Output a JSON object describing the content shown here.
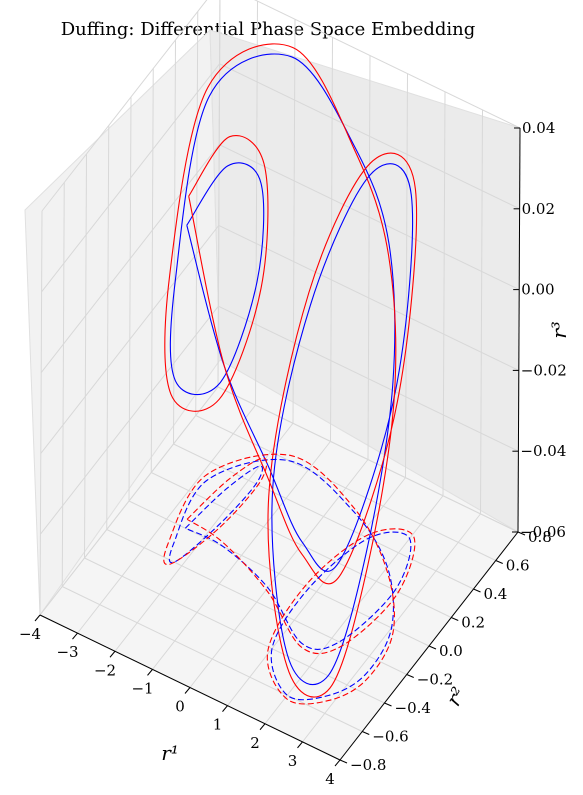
{
  "chart_data": {
    "type": "line",
    "projection": "3d",
    "title": "Duffing: Differential Phase Space Embedding",
    "xlabel": "r¹",
    "ylabel": "r²",
    "zlabel": "r³",
    "xlim": [
      -4,
      4
    ],
    "ylim": [
      -0.8,
      0.8
    ],
    "zlim": [
      -0.06,
      0.04
    ],
    "xticks": [
      "−4",
      "−3",
      "−2",
      "−1",
      "0",
      "1",
      "2",
      "3",
      "4"
    ],
    "yticks": [
      "−0.8",
      "−0.6",
      "−0.4",
      "−0.2",
      "0.0",
      "0.2",
      "0.4",
      "0.6",
      "0.8"
    ],
    "zticks": [
      "−0.06",
      "−0.04",
      "−0.02",
      "0.00",
      "0.02",
      "0.04"
    ],
    "grid": true,
    "series": [
      {
        "color": "#0000ff",
        "line": "solid",
        "note": "3D trajectory, first embedding",
        "points": [
          [
            -2.5,
            0.0,
            0.015
          ],
          [
            -2.3,
            0.3,
            0.02
          ],
          [
            -2.0,
            0.5,
            0.01
          ],
          [
            -1.8,
            0.4,
            -0.01
          ],
          [
            -1.9,
            0.1,
            -0.025
          ],
          [
            -2.2,
            -0.2,
            -0.015
          ],
          [
            -2.5,
            -0.1,
            0.005
          ],
          [
            -2.8,
            0.3,
            0.035
          ],
          [
            -1.5,
            0.6,
            0.04
          ],
          [
            0.5,
            0.5,
            0.03
          ],
          [
            2.0,
            0.3,
            0.02
          ],
          [
            3.0,
            0.0,
            0.0
          ],
          [
            3.2,
            -0.3,
            -0.03
          ],
          [
            2.8,
            -0.5,
            -0.055
          ],
          [
            2.0,
            -0.6,
            -0.05
          ],
          [
            1.0,
            -0.4,
            -0.02
          ],
          [
            0.8,
            0.0,
            0.01
          ],
          [
            1.2,
            0.4,
            0.03
          ],
          [
            2.0,
            0.5,
            0.025
          ],
          [
            2.5,
            0.2,
            -0.01
          ],
          [
            2.2,
            -0.2,
            -0.04
          ],
          [
            1.5,
            -0.3,
            -0.035
          ],
          [
            0.0,
            -0.1,
            -0.03
          ],
          [
            -1.5,
            0.0,
            -0.015
          ],
          [
            -2.5,
            0.0,
            0.015
          ]
        ]
      },
      {
        "color": "#ff0000",
        "line": "solid",
        "note": "3D trajectory, second embedding",
        "points": [
          [
            -2.6,
            0.05,
            0.02
          ],
          [
            -2.4,
            0.35,
            0.025
          ],
          [
            -2.05,
            0.55,
            0.012
          ],
          [
            -1.75,
            0.42,
            -0.012
          ],
          [
            -1.85,
            0.08,
            -0.028
          ],
          [
            -2.25,
            -0.22,
            -0.018
          ],
          [
            -2.6,
            -0.12,
            0.006
          ],
          [
            -2.9,
            0.32,
            0.036
          ],
          [
            -1.55,
            0.63,
            0.041
          ],
          [
            0.45,
            0.52,
            0.028
          ],
          [
            2.05,
            0.28,
            0.018
          ],
          [
            3.1,
            -0.02,
            -0.002
          ],
          [
            3.3,
            -0.32,
            -0.032
          ],
          [
            2.9,
            -0.52,
            -0.057
          ],
          [
            2.05,
            -0.62,
            -0.052
          ],
          [
            0.95,
            -0.42,
            -0.022
          ],
          [
            0.7,
            0.02,
            0.012
          ],
          [
            1.15,
            0.42,
            0.032
          ],
          [
            2.05,
            0.52,
            0.026
          ],
          [
            2.6,
            0.18,
            -0.012
          ],
          [
            2.3,
            -0.22,
            -0.042
          ],
          [
            1.55,
            -0.32,
            -0.037
          ],
          [
            0.05,
            -0.12,
            -0.032
          ],
          [
            -1.55,
            0.02,
            -0.016
          ],
          [
            -2.6,
            0.05,
            0.02
          ]
        ]
      },
      {
        "color": "#0000ff",
        "line": "dashed",
        "note": "projection onto floor (z = -0.06)",
        "points": [
          [
            -2.5,
            0.0
          ],
          [
            -2.3,
            0.3
          ],
          [
            -2.0,
            0.5
          ],
          [
            -1.8,
            0.4
          ],
          [
            -1.9,
            0.1
          ],
          [
            -2.2,
            -0.2
          ],
          [
            -2.5,
            -0.1
          ],
          [
            -2.8,
            0.3
          ],
          [
            -1.5,
            0.6
          ],
          [
            0.5,
            0.5
          ],
          [
            2.0,
            0.3
          ],
          [
            3.0,
            0.0
          ],
          [
            3.2,
            -0.3
          ],
          [
            2.8,
            -0.5
          ],
          [
            2.0,
            -0.6
          ],
          [
            1.0,
            -0.4
          ],
          [
            0.8,
            0.0
          ],
          [
            1.2,
            0.4
          ],
          [
            2.0,
            0.5
          ],
          [
            2.5,
            0.2
          ],
          [
            2.2,
            -0.2
          ],
          [
            1.5,
            -0.3
          ],
          [
            0.0,
            -0.1
          ],
          [
            -1.5,
            0.0
          ],
          [
            -2.5,
            0.0
          ]
        ]
      },
      {
        "color": "#ff0000",
        "line": "dashed",
        "note": "projection onto floor (z = -0.06)",
        "points": [
          [
            -2.6,
            0.05
          ],
          [
            -2.4,
            0.35
          ],
          [
            -2.05,
            0.55
          ],
          [
            -1.75,
            0.42
          ],
          [
            -1.85,
            0.08
          ],
          [
            -2.25,
            -0.22
          ],
          [
            -2.6,
            -0.12
          ],
          [
            -2.9,
            0.32
          ],
          [
            -1.55,
            0.63
          ],
          [
            0.45,
            0.52
          ],
          [
            2.05,
            0.28
          ],
          [
            3.1,
            -0.02
          ],
          [
            3.3,
            -0.32
          ],
          [
            2.9,
            -0.52
          ],
          [
            2.05,
            -0.62
          ],
          [
            0.95,
            -0.42
          ],
          [
            0.7,
            0.02
          ],
          [
            1.15,
            0.42
          ],
          [
            2.05,
            0.52
          ],
          [
            2.6,
            0.18
          ],
          [
            2.3,
            -0.22
          ],
          [
            1.55,
            -0.32
          ],
          [
            0.05,
            -0.12
          ],
          [
            -1.55,
            0.02
          ],
          [
            -2.6,
            0.05
          ]
        ]
      }
    ]
  }
}
